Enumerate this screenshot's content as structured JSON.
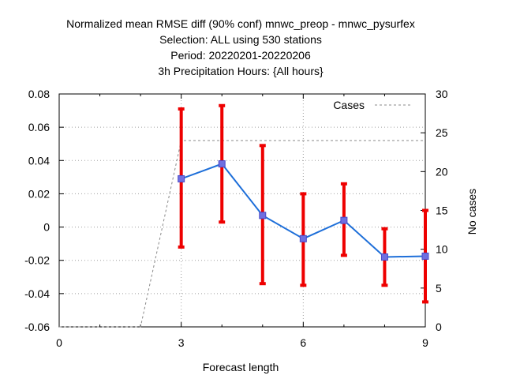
{
  "chart_data": {
    "type": "line",
    "title_lines": [
      "Normalized mean RMSE diff (90% conf) mnwc_preop - mnwc_pysurfex",
      "Selection: ALL using   530 stations",
      "Period: 20220201-20220206",
      "3h Precipitation   Hours: {All hours}"
    ],
    "xlabel": "Forecast length",
    "ylabel": "",
    "y2label": "No cases",
    "xlim": [
      0,
      9
    ],
    "ylim": [
      -0.06,
      0.08
    ],
    "y2lim": [
      0,
      30
    ],
    "x_ticks": [
      "0",
      "3",
      "6",
      "9"
    ],
    "y_ticks": [
      "0.08",
      "0.06",
      "0.04",
      "0.02",
      "0",
      "-0.02",
      "-0.04",
      "-0.06"
    ],
    "y2_ticks": [
      "30",
      "25",
      "20",
      "15",
      "10",
      "5",
      "0"
    ],
    "grid": "dotted at x=3,6,9 and each y tick",
    "legend": {
      "position": "top-right",
      "entries": [
        "Cases"
      ]
    },
    "series": [
      {
        "kind": "mean",
        "color": "#1e6fd9",
        "x": [
          3,
          4,
          5,
          6,
          7,
          8,
          9
        ],
        "y": [
          0.029,
          0.038,
          0.007,
          -0.007,
          0.004,
          -0.018,
          -0.0175
        ]
      },
      {
        "kind": "confidence_interval",
        "color": "#ee0000",
        "x": [
          3,
          4,
          5,
          6,
          7,
          8,
          9
        ],
        "low": [
          -0.012,
          0.003,
          -0.034,
          -0.035,
          -0.017,
          -0.035,
          -0.045
        ],
        "high": [
          0.071,
          0.073,
          0.049,
          0.02,
          0.026,
          -0.001,
          0.01
        ]
      },
      {
        "name": "Cases",
        "axis": "right",
        "color": "#888888",
        "x": [
          0,
          1,
          2,
          3,
          4,
          5,
          6,
          7,
          8,
          9
        ],
        "y": [
          0,
          0,
          0,
          24,
          24,
          24,
          24,
          24,
          24,
          24
        ]
      }
    ]
  }
}
